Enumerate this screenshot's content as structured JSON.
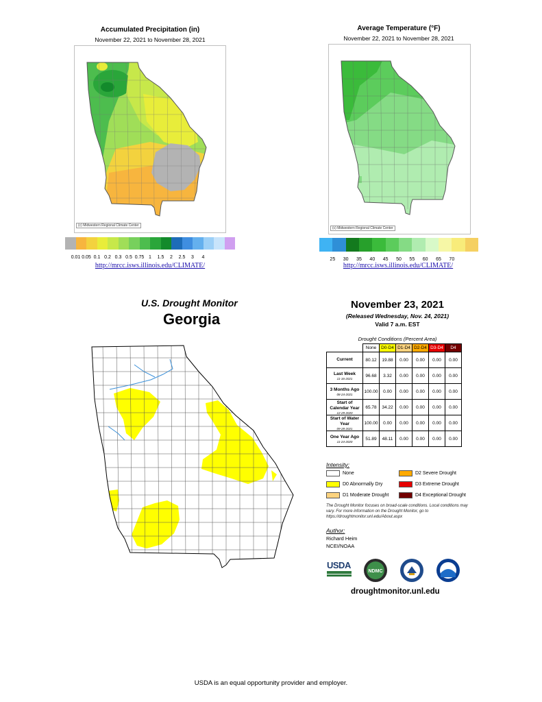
{
  "precip_map": {
    "title": "Accumulated Precipitation (in)",
    "dates": "November 22, 2021 to November 28, 2021",
    "credit": "(c) Midwestern Regional Climate Center",
    "legend_colors": [
      "#b3b3b3",
      "#f7b53e",
      "#f3d23e",
      "#e8ed3a",
      "#c7e84a",
      "#a0de58",
      "#77d05c",
      "#4dbd4e",
      "#2aa63a",
      "#138a2b",
      "#1d6cb8",
      "#3f8ee0",
      "#64b0ee",
      "#9dd0f7",
      "#c8e4fb",
      "#d09ff0"
    ],
    "legend_labels": [
      "0.01",
      "0.05",
      "0.1",
      "0.2",
      "0.3",
      "0.5",
      "0.75",
      "1",
      "1.5",
      "2",
      "2.5",
      "3",
      "4"
    ],
    "url": "http://mrcc.isws.illinois.edu/CLIMATE/"
  },
  "temp_map": {
    "title": "Average Temperature (°F)",
    "dates": "November 22, 2021 to November 28, 2021",
    "credit": "(c) Midwestern Regional Climate Center",
    "legend_colors": [
      "#3fb3f3",
      "#2f8fd7",
      "#137a1e",
      "#27a02b",
      "#3bbb3b",
      "#5ccc5c",
      "#85db85",
      "#b0ecb0",
      "#d8f9c8",
      "#f6f7a6",
      "#f8ec7a",
      "#f5d062"
    ],
    "legend_labels": [
      "25",
      "30",
      "35",
      "40",
      "45",
      "50",
      "55",
      "60",
      "65",
      "70"
    ],
    "url": "http://mrcc.isws.illinois.edu/CLIMATE/"
  },
  "drought": {
    "heading": "U.S. Drought Monitor",
    "state": "Georgia",
    "date": "November 23, 2021",
    "released": "(Released Wednesday, Nov. 24, 2021)",
    "valid": "Valid 7 a.m. EST",
    "table_caption": "Drought Conditions (Percent Area)",
    "columns": [
      "None",
      "D0-D4",
      "D1-D4",
      "D2-D4",
      "D3-D4",
      "D4"
    ],
    "column_colors": [
      "#ffffff",
      "#ffff00",
      "#fcd37f",
      "#ffaa00",
      "#e60000",
      "#730000"
    ],
    "rows": [
      {
        "label": "Current",
        "sub": "",
        "values": [
          "80.12",
          "19.88",
          "0.00",
          "0.00",
          "0.00",
          "0.00"
        ]
      },
      {
        "label": "Last Week",
        "sub": "11-16-2021",
        "values": [
          "96.68",
          "3.32",
          "0.00",
          "0.00",
          "0.00",
          "0.00"
        ]
      },
      {
        "label": "3 Months Ago",
        "sub": "08-24-2021",
        "values": [
          "100.00",
          "0.00",
          "0.00",
          "0.00",
          "0.00",
          "0.00"
        ]
      },
      {
        "label": "Start of Calendar Year",
        "sub": "12-29-2020",
        "values": [
          "65.78",
          "34.22",
          "0.00",
          "0.00",
          "0.00",
          "0.00"
        ]
      },
      {
        "label": "Start of Water Year",
        "sub": "09-28-2021",
        "values": [
          "100.00",
          "0.00",
          "0.00",
          "0.00",
          "0.00",
          "0.00"
        ]
      },
      {
        "label": "One Year Ago",
        "sub": "11-24-2020",
        "values": [
          "51.89",
          "48.11",
          "0.00",
          "0.00",
          "0.00",
          "0.00"
        ]
      }
    ],
    "intensity_heading": "Intensity:",
    "intensity": [
      {
        "label": "None",
        "color": "#ffffff"
      },
      {
        "label": "D0 Abnormally Dry",
        "color": "#ffff00"
      },
      {
        "label": "D1 Moderate Drought",
        "color": "#fcd37f"
      },
      {
        "label": "D2 Severe Drought",
        "color": "#ffaa00"
      },
      {
        "label": "D3 Extreme Drought",
        "color": "#e60000"
      },
      {
        "label": "D4 Exceptional Drought",
        "color": "#730000"
      }
    ],
    "note": "The Drought Monitor focuses on broad-scale conditions. Local conditions may vary. For more information on the Drought Monitor, go to https://droughtmonitor.unl.edu/About.aspx",
    "author_heading": "Author:",
    "author_name": "Richard Heim",
    "author_org": "NCEI/NOAA",
    "logos": {
      "usda": "USDA",
      "ndmc": "NDMC",
      "doc": "DOC",
      "noaa": "NOAA"
    },
    "site": "droughtmonitor.unl.edu"
  },
  "footer": "USDA is an equal opportunity provider and employer."
}
